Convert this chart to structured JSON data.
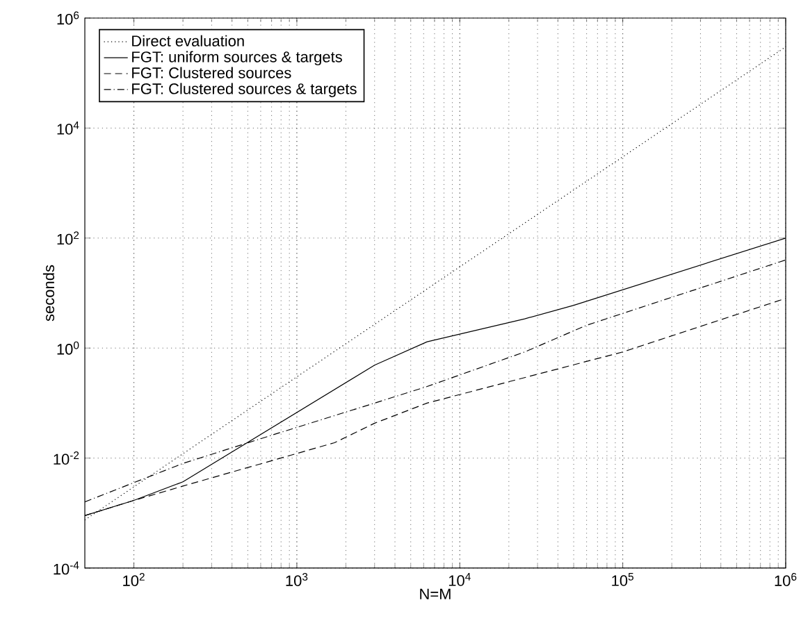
{
  "chart_data": {
    "type": "line",
    "xlabel": "N=M",
    "ylabel": "seconds",
    "log": "xy",
    "grid": true,
    "legend": "top left",
    "xlim": [
      50,
      1000000
    ],
    "ylim": [
      0.0001,
      1000000
    ],
    "xticks": [
      {
        "value": 100,
        "label": "10$^{2}$"
      },
      {
        "value": 1000,
        "label": "10$^{3}$"
      },
      {
        "value": 10000,
        "label": "10$^{4}$"
      },
      {
        "value": 100000,
        "label": "10$^{5}$"
      },
      {
        "value": 1000000,
        "label": "10$^{6}$"
      }
    ],
    "yticks": [
      {
        "value": 0.0001,
        "label": "10$^{-4}$"
      },
      {
        "value": 0.01,
        "label": "10$^{-2}$"
      },
      {
        "value": 1,
        "label": "10$^{0}$"
      },
      {
        "value": 100,
        "label": "10$^{2}$"
      },
      {
        "value": 10000,
        "label": "10$^{4}$"
      },
      {
        "value": 1000000,
        "label": "10$^{6}$"
      }
    ],
    "series": [
      {
        "name": "Direct evaluation",
        "color": "#000000",
        "line_style": "dotted",
        "x": [
          50,
          100,
          1000,
          10000,
          100000,
          1000000
        ],
        "values": [
          0.00075,
          0.003,
          0.3,
          30,
          3000,
          300000
        ]
      },
      {
        "name": "FGT: uniform sources & targets",
        "color": "#000000",
        "line_style": "solid",
        "x": [
          50,
          100,
          200,
          3000,
          6300,
          25000,
          50000,
          1000000
        ],
        "values": [
          0.0009,
          0.0017,
          0.0037,
          0.49,
          1.3,
          3.4,
          6,
          100
        ]
      },
      {
        "name": "FGT: Clustered sources",
        "color": "#000000",
        "line_style": "dashed",
        "x": [
          50,
          100,
          200,
          1700,
          3000,
          6300,
          100000,
          1000000
        ],
        "values": [
          0.0009,
          0.0017,
          0.0031,
          0.019,
          0.043,
          0.1,
          0.85,
          8
        ]
      },
      {
        "name": "FGT: Clustered sources & targets",
        "color": "#000000",
        "line_style": "dashdot",
        "x": [
          50,
          200,
          700,
          3000,
          6300,
          25000,
          60000,
          1000000
        ],
        "values": [
          0.0016,
          0.008,
          0.026,
          0.1,
          0.2,
          0.85,
          2.6,
          40
        ]
      }
    ]
  }
}
